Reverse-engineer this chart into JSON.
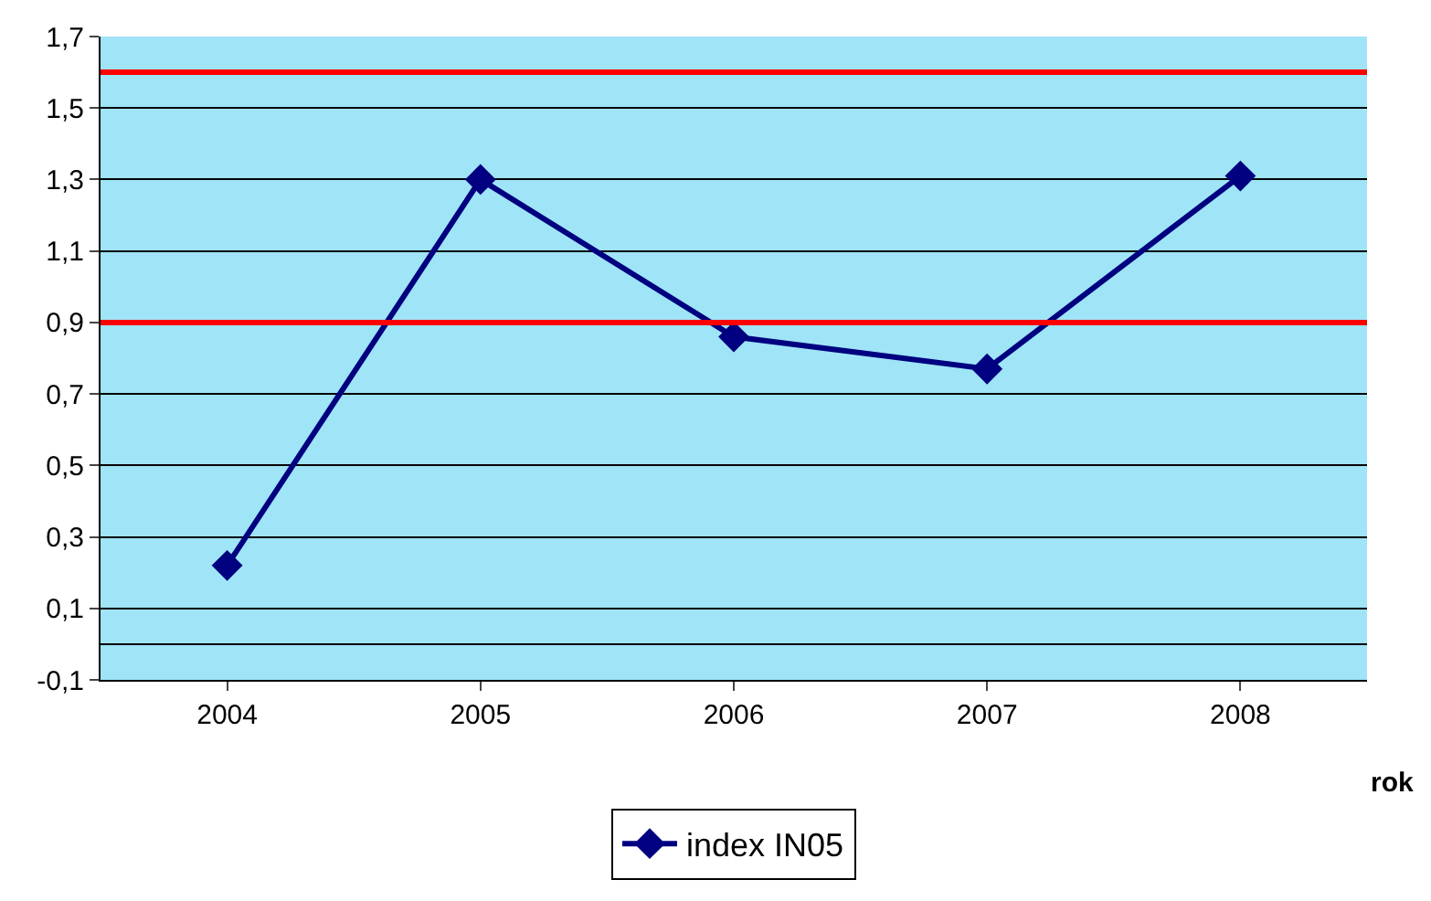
{
  "chart_data": {
    "type": "line",
    "xlabel": "rok",
    "categories": [
      "2004",
      "2005",
      "2006",
      "2007",
      "2008"
    ],
    "series": [
      {
        "name": "index IN05",
        "color": "#000080",
        "values": [
          0.22,
          1.3,
          0.86,
          0.77,
          1.31
        ]
      }
    ],
    "ylim": [
      -0.1,
      1.7
    ],
    "yticks": [
      {
        "value": -0.1,
        "label": "-0,1"
      },
      {
        "value": 0.1,
        "label": "0,1"
      },
      {
        "value": 0.3,
        "label": "0,3"
      },
      {
        "value": 0.5,
        "label": "0,5"
      },
      {
        "value": 0.7,
        "label": "0,7"
      },
      {
        "value": 0.9,
        "label": "0,9"
      },
      {
        "value": 1.1,
        "label": "1,1"
      },
      {
        "value": 1.3,
        "label": "1,3"
      },
      {
        "value": 1.5,
        "label": "1,5"
      },
      {
        "value": 1.7,
        "label": "1,7"
      }
    ],
    "ref_lines": [
      {
        "axis": "y",
        "value": 1.6,
        "color": "#ff0000"
      },
      {
        "axis": "y",
        "value": 0.9,
        "color": "#ff0000"
      }
    ],
    "grid": "y",
    "legend": "bottom",
    "marker": "diamond",
    "line_style": "solid"
  }
}
